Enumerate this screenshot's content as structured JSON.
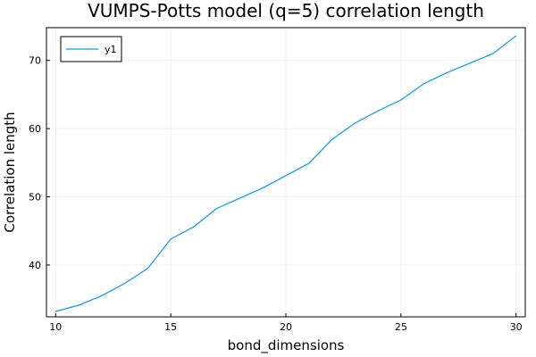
{
  "chart_data": {
    "type": "line",
    "title": "VUMPS-Potts model (q=5) correlation length",
    "xlabel": "bond_dimensions",
    "ylabel": "Correlation length",
    "xlim": [
      9.6,
      30.4
    ],
    "ylim": [
      32.4,
      74.8
    ],
    "x_ticks": [
      10,
      15,
      20,
      25,
      30
    ],
    "y_ticks": [
      40,
      50,
      60,
      70
    ],
    "grid": true,
    "legend": "top-left",
    "series": [
      {
        "name": "y1",
        "color": "#009AFA",
        "x": [
          10,
          11,
          12,
          13,
          14,
          15,
          16,
          17,
          18,
          19,
          20,
          21,
          22,
          23,
          24,
          25,
          26,
          27,
          28,
          29,
          30
        ],
        "y": [
          33.2,
          34.1,
          35.5,
          37.3,
          39.5,
          43.8,
          45.6,
          48.3,
          49.8,
          51.3,
          53.1,
          54.9,
          58.4,
          60.8,
          62.6,
          64.2,
          66.6,
          68.2,
          69.6,
          71.0,
          73.6
        ]
      }
    ]
  }
}
